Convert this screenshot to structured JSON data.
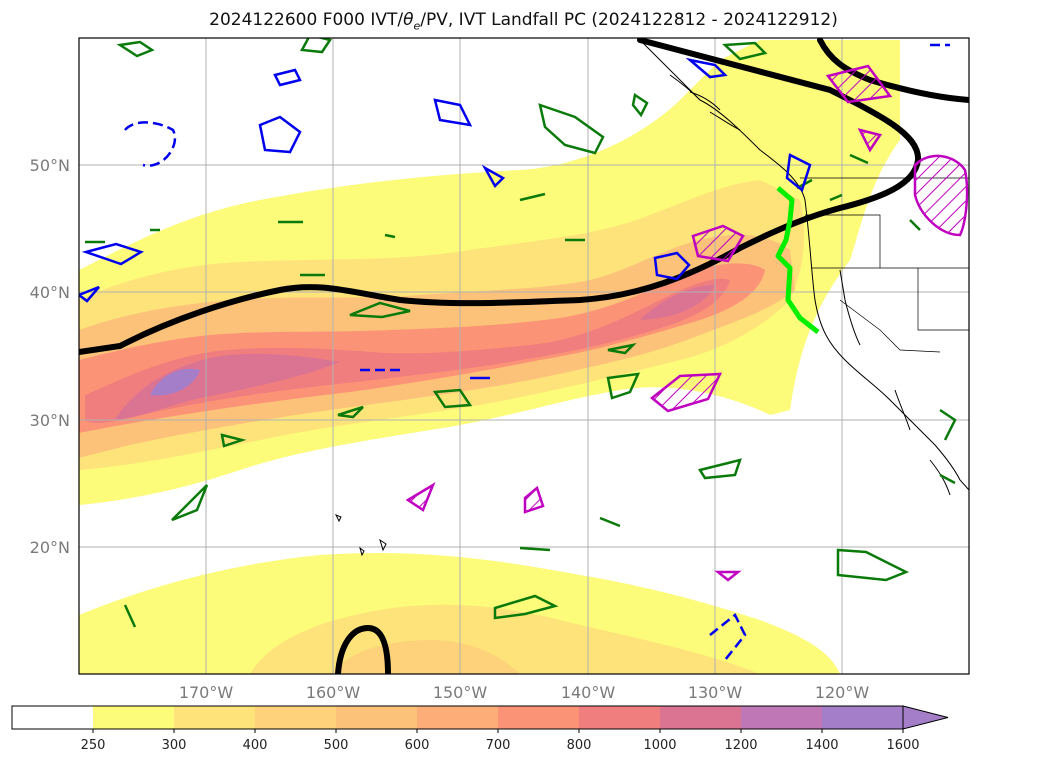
{
  "title": "2024122600 F000 IVT/θe/PV, IVT Landfall PC (2024122812 - 2024122912)",
  "title_parts": {
    "prefix": "2024122600 F000 IVT/",
    "theta": "θ",
    "theta_sub": "e",
    "suffix": "/PV, IVT Landfall PC (2024122812 - 2024122912)"
  },
  "map": {
    "lon_range": [
      -180,
      -110
    ],
    "lat_range": [
      10,
      60
    ],
    "lat_ticks": [
      {
        "value": 20,
        "label": "20°N"
      },
      {
        "value": 30,
        "label": "30°N"
      },
      {
        "value": 40,
        "label": "40°N"
      },
      {
        "value": 50,
        "label": "50°N"
      }
    ],
    "lon_ticks": [
      {
        "value": -170,
        "label": "170°W"
      },
      {
        "value": -160,
        "label": "160°W"
      },
      {
        "value": -150,
        "label": "150°W"
      },
      {
        "value": -140,
        "label": "140°W"
      },
      {
        "value": -130,
        "label": "130°W"
      },
      {
        "value": -120,
        "label": "120°W"
      }
    ],
    "grid": true
  },
  "colorbar": {
    "levels": [
      "250",
      "300",
      "400",
      "500",
      "600",
      "700",
      "800",
      "1000",
      "1200",
      "1400",
      "1600"
    ],
    "colors": [
      "#ffffff",
      "#fdfb7a",
      "#fde37a",
      "#fdd27a",
      "#fdc27a",
      "#fdae78",
      "#fb9376",
      "#f07e7e",
      "#db7393",
      "#bf78b5",
      "#a57ec9"
    ],
    "extend": "max"
  },
  "colors": {
    "ivt_low": "#fdfb7a",
    "ivt_mid": "#fdc27a",
    "ivt_high": "#f07e7e",
    "ivt_max": "#a57ec9",
    "pv_contour": "#0a7a0a",
    "theta_contour": "#0000ee",
    "magenta_contour": "#c000c0",
    "jet_axis": "#000000",
    "landfall_line": "#00ee00"
  }
}
